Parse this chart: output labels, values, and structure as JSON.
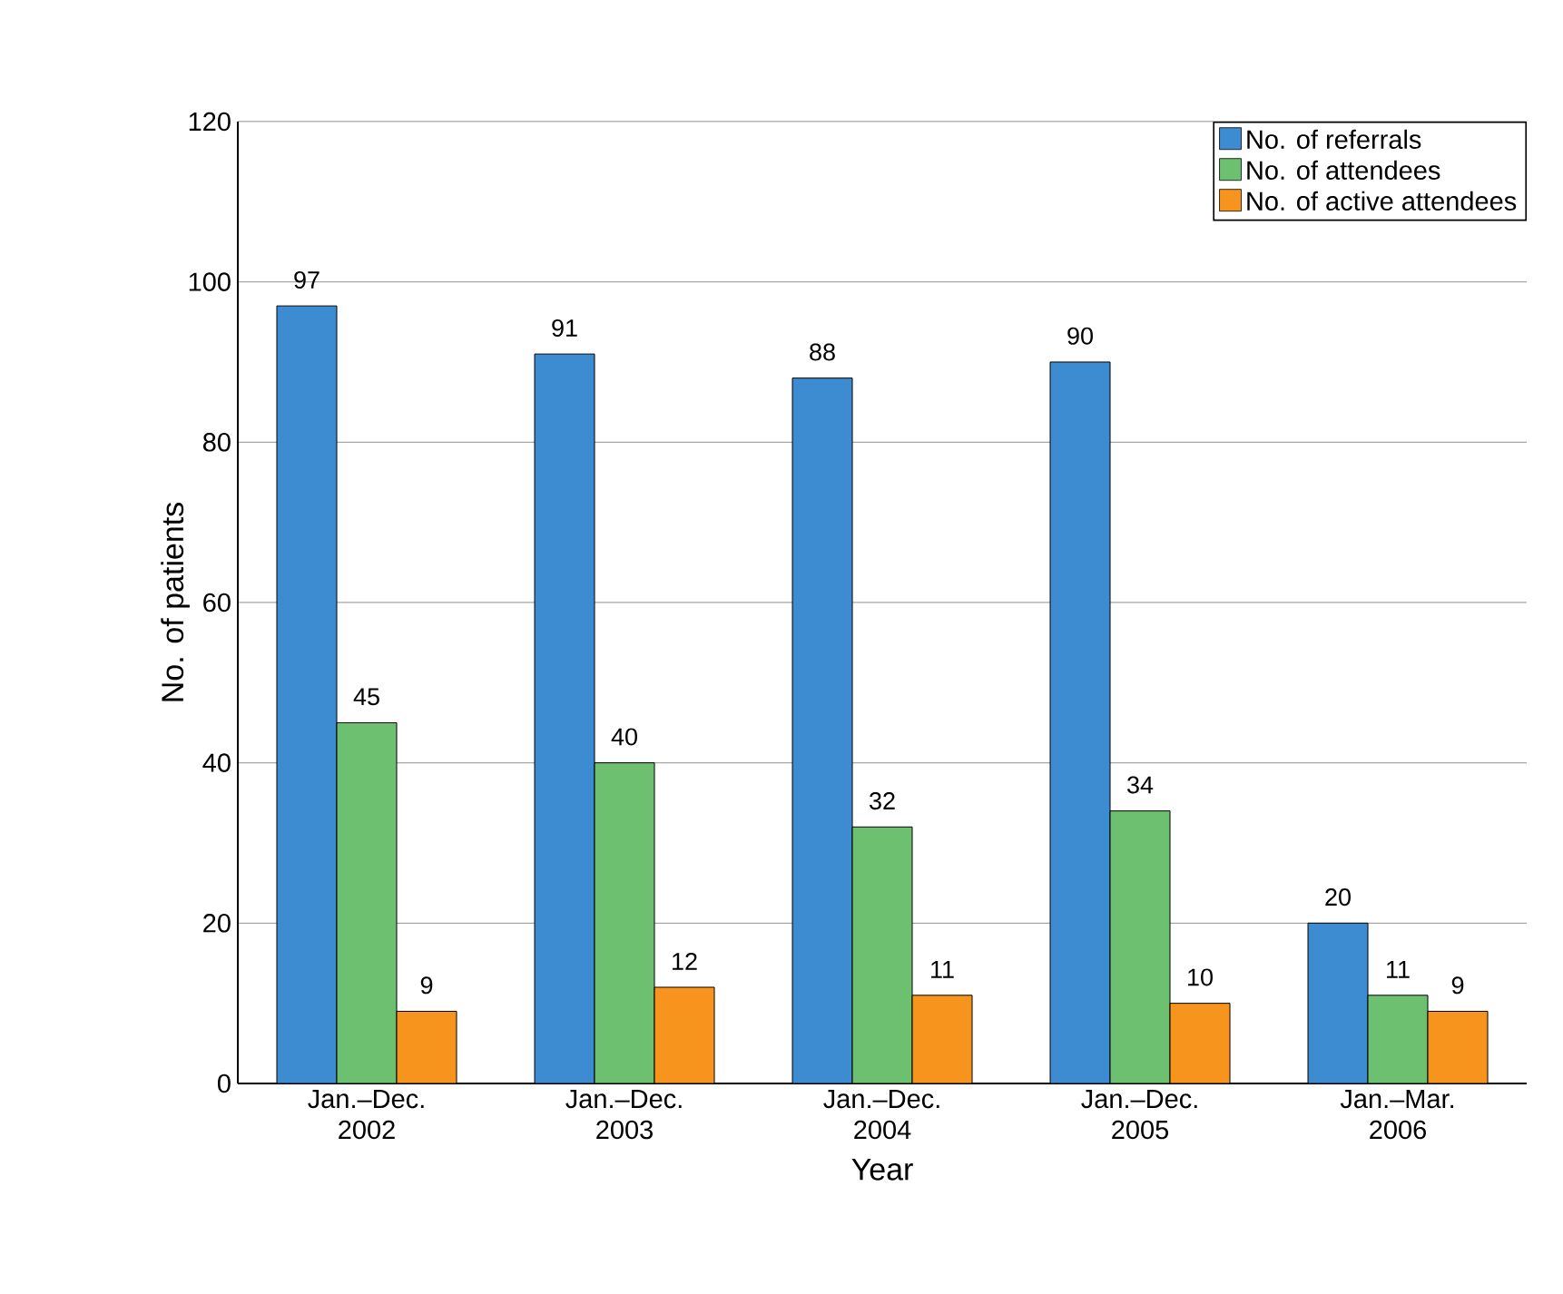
{
  "chart_data": {
    "type": "bar",
    "xlabel": "Year",
    "ylabel": "No. of patients",
    "categories": [
      "Jan.–Dec. 2002",
      "Jan.–Dec. 2003",
      "Jan.–Dec. 2004",
      "Jan.–Dec. 2005",
      "Jan.–Mar. 2006"
    ],
    "series": [
      {
        "name": "No. of referrals",
        "color": "#3d8bd0",
        "values": [
          97,
          91,
          88,
          90,
          20
        ]
      },
      {
        "name": "No. of attendees",
        "color": "#6cc070",
        "values": [
          45,
          40,
          32,
          34,
          11
        ]
      },
      {
        "name": "No. of active attendees",
        "color": "#f7941d",
        "values": [
          9,
          12,
          11,
          10,
          9
        ]
      }
    ],
    "ylim": [
      0,
      120
    ],
    "yticks": [
      0,
      20,
      40,
      60,
      80,
      100,
      120
    ],
    "grid": "y",
    "legend": "top right",
    "data_labels": true
  }
}
